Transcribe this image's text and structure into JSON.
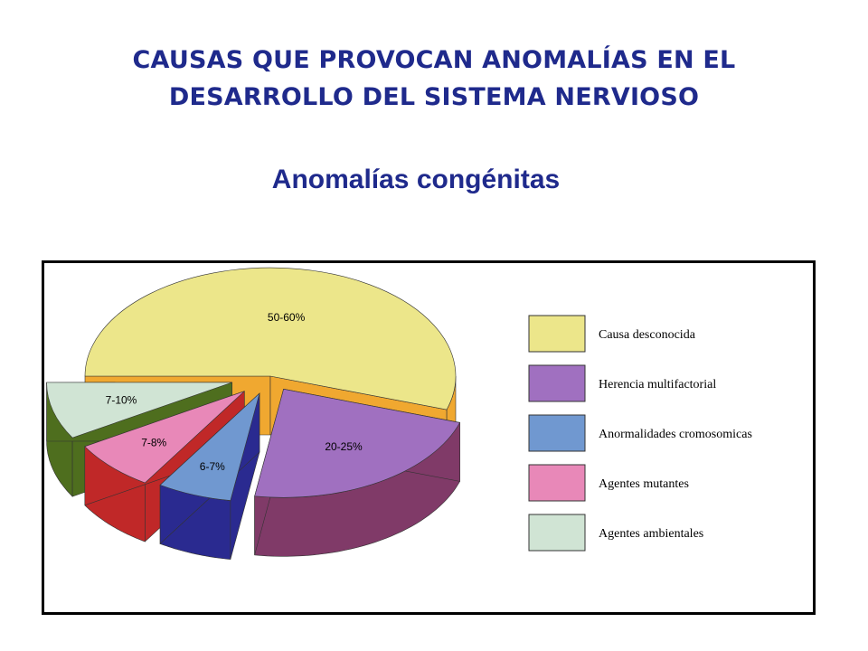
{
  "slide": {
    "title_line1": "CAUSAS QUE PROVOCAN ANOMALÍAS EN EL",
    "title_line2": "DESARROLLO DEL SISTEMA NERVIOSO",
    "subtitle": "Anomalías congénitas"
  },
  "chart_data": {
    "type": "pie",
    "title": "Anomalías congénitas",
    "legend_position": "right",
    "slices": [
      {
        "label": "Causa desconocida",
        "value_text": "50-60%",
        "value": 55,
        "color": "#ece68a",
        "side_color": "#f0a830"
      },
      {
        "label": "Herencia multifactorial",
        "value_text": "20-25%",
        "value": 22.5,
        "color": "#a070c0",
        "side_color": "#803a68"
      },
      {
        "label": "Anormalidades cromosomicas",
        "value_text": "6-7%",
        "value": 6.5,
        "color": "#7098d0",
        "side_color": "#2a2a90"
      },
      {
        "label": "Agentes mutantes",
        "value_text": "7-8%",
        "value": 7.5,
        "color": "#e888b8",
        "side_color": "#c02828"
      },
      {
        "label": "Agentes ambientales",
        "value_text": "7-10%",
        "value": 8.5,
        "color": "#d0e4d4",
        "side_color": "#4e6e1e"
      }
    ]
  }
}
